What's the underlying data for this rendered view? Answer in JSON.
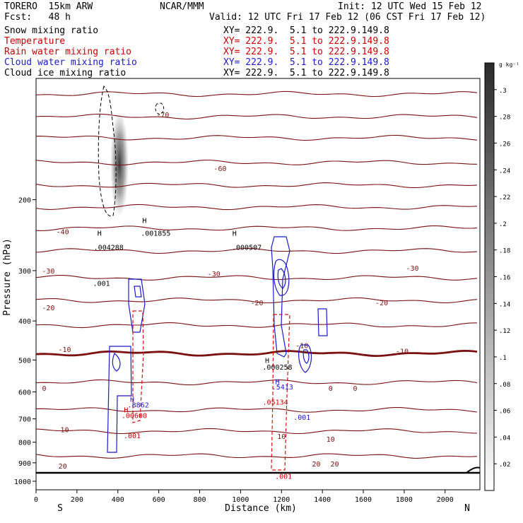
{
  "header": {
    "model": "TORERO  15km ARW",
    "fcst": "Fcst:   48 h",
    "center": "NCAR/MMM",
    "init": "Init: 12 UTC Wed 15 Feb 12",
    "valid": "Valid: 12 UTC Fri 17 Feb 12 (06 CST Fri 17 Feb 12)"
  },
  "fields": [
    {
      "name": "Snow mixing ratio",
      "xy": "XY= 222.9.  5.1 to 222.9.149.8",
      "color": "#000000"
    },
    {
      "name": "Temperature",
      "xy": "XY= 222.9.  5.1 to 222.9.149.8",
      "color": "#cc0000"
    },
    {
      "name": "Rain water mixing ratio",
      "xy": "XY= 222.9.  5.1 to 222.9.149.8",
      "color": "#cc0000"
    },
    {
      "name": "Cloud water mixing ratio",
      "xy": "XY= 222.9.  5.1 to 222.9.149.8",
      "color": "#1a1acc"
    },
    {
      "name": "Cloud ice mixing ratio",
      "xy": "XY= 222.9.  5.1 to 222.9.149.8",
      "color": "#000000"
    }
  ],
  "colorbar": {
    "unit": "g kg⁻¹",
    "ticks": [
      ".02",
      ".04",
      ".06",
      ".08",
      ".1",
      ".12",
      ".14",
      ".16",
      ".18",
      ".2",
      ".22",
      ".24",
      ".26",
      ".28",
      ".3"
    ]
  },
  "chart_data": {
    "type": "contour cross-section",
    "xlabel": "Distance (km)",
    "ylabel": "Pressure (hPa)",
    "xlim": [
      0,
      2170
    ],
    "ylim": [
      1050,
      100
    ],
    "y_log": true,
    "x_ticks": [
      0,
      200,
      400,
      600,
      800,
      1000,
      1200,
      1400,
      1600,
      1800,
      2000
    ],
    "y_ticks": [
      200,
      300,
      400,
      500,
      600,
      700,
      800,
      900,
      1000
    ],
    "x_end_labels": [
      "S",
      "N"
    ],
    "colorbar_range": [
      0,
      0.32
    ],
    "temperature_labels": [
      {
        "text": "-70",
        "x": 620,
        "p": 123
      },
      {
        "text": "-60",
        "x": 900,
        "p": 167
      },
      {
        "text": "-40",
        "x": 130,
        "p": 240
      },
      {
        "text": "-30",
        "x": 60,
        "p": 300
      },
      {
        "text": "-30",
        "x": 870,
        "p": 305
      },
      {
        "text": "-30",
        "x": 1840,
        "p": 295
      },
      {
        "text": "-20",
        "x": 60,
        "p": 370
      },
      {
        "text": "-20",
        "x": 1080,
        "p": 360
      },
      {
        "text": "-20",
        "x": 1690,
        "p": 360
      },
      {
        "text": "-10",
        "x": 140,
        "p": 470
      },
      {
        "text": "-10",
        "x": 1300,
        "p": 460
      },
      {
        "text": "-10",
        "x": 1790,
        "p": 475
      },
      {
        "text": "0",
        "x": 40,
        "p": 587
      },
      {
        "text": "0",
        "x": 1440,
        "p": 587
      },
      {
        "text": "0",
        "x": 1560,
        "p": 587
      },
      {
        "text": "10",
        "x": 140,
        "p": 743
      },
      {
        "text": "10",
        "x": 1200,
        "p": 772
      },
      {
        "text": "10",
        "x": 1440,
        "p": 785
      },
      {
        "text": "20",
        "x": 130,
        "p": 916
      },
      {
        "text": "20",
        "x": 1370,
        "p": 904
      },
      {
        "text": "20",
        "x": 1460,
        "p": 904
      }
    ],
    "annotations": [
      {
        "text": "H",
        "x": 310,
        "p": 242,
        "color": "#000000"
      },
      {
        "text": ".004288",
        "x": 355,
        "p": 262,
        "color": "#000000"
      },
      {
        "text": "H",
        "x": 530,
        "p": 225,
        "color": "#000000"
      },
      {
        "text": ".001855",
        "x": 585,
        "p": 242,
        "color": "#000000"
      },
      {
        "text": "H",
        "x": 970,
        "p": 242,
        "color": "#000000"
      },
      {
        "text": ".000507",
        "x": 1030,
        "p": 262,
        "color": "#000000"
      },
      {
        "text": ".001",
        "x": 320,
        "p": 322,
        "color": "#000000"
      },
      {
        "text": "H",
        "x": 1130,
        "p": 500,
        "color": "#000000"
      },
      {
        "text": ".000258",
        "x": 1180,
        "p": 520,
        "color": "#000000"
      },
      {
        "text": "H",
        "x": 1180,
        "p": 565,
        "color": "#1a1acc"
      },
      {
        "text": ".5413",
        "x": 1205,
        "p": 582,
        "color": "#1a1acc"
      },
      {
        "text": ".001",
        "x": 1300,
        "p": 693,
        "color": "#1a1acc"
      },
      {
        "text": ".05134",
        "x": 1170,
        "p": 635,
        "color": "#cc0000"
      },
      {
        "text": "H",
        "x": 470,
        "p": 625,
        "color": "#1a1acc"
      },
      {
        "text": ".8862",
        "x": 500,
        "p": 645,
        "color": "#1a1acc"
      },
      {
        "text": "H",
        "x": 440,
        "p": 664,
        "color": "#cc0000"
      },
      {
        "text": ".00600",
        "x": 480,
        "p": 685,
        "color": "#cc0000"
      },
      {
        "text": ".001",
        "x": 470,
        "p": 770,
        "color": "#cc0000"
      },
      {
        "text": ".001",
        "x": 1210,
        "p": 970,
        "color": "#cc0000"
      }
    ]
  }
}
